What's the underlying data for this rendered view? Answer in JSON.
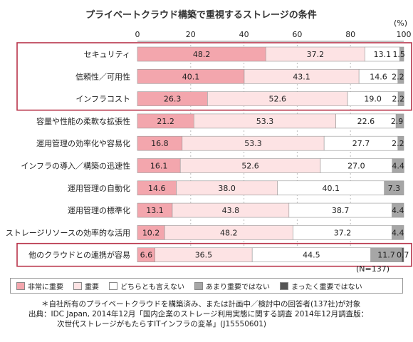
{
  "title": "プライベートクラウド構築で重視するストレージの条件",
  "unit_label": "(%)",
  "n_label": "(N=137)",
  "legend": [
    {
      "label": "非常に重要",
      "color": "#f3a6ad"
    },
    {
      "label": "重要",
      "color": "#fde3e4"
    },
    {
      "label": "どちらとも言えない",
      "color": "#ffffff"
    },
    {
      "label": "あまり重要ではない",
      "color": "#a6a6a6"
    },
    {
      "label": "まったく重要ではない",
      "color": "#555555"
    }
  ],
  "notes": [
    "＊自社所有のプライベートクラウドを構築済み、または計画中／検討中の回答者(137社)が対象",
    "出典：IDC Japan, 2014年12月「国内企業のストレージ利用実態に関する調査 2014年12月調査版：",
    "次世代ストレージがもたらすITインフラの変革」(J15550601)"
  ],
  "chart_data": {
    "type": "bar",
    "orientation": "horizontal-stacked-100",
    "title": "プライベートクラウド構築で重視するストレージの条件",
    "xlim": [
      0,
      100
    ],
    "xticks": [
      0,
      20,
      40,
      60,
      80,
      100
    ],
    "categories": [
      "セキュリティ",
      "信頼性／可用性",
      "インフラコスト",
      "容量や性能の柔軟な拡張性",
      "運用管理の効率化や容易化",
      "インフラの導入／構築の迅速性",
      "運用管理の自動化",
      "運用管理の標準化",
      "ストレージリソースの効率的な活用",
      "他のクラウドとの連携が容易"
    ],
    "series": [
      {
        "name": "非常に重要",
        "values": [
          48.2,
          40.1,
          26.3,
          21.2,
          16.8,
          16.1,
          14.6,
          13.1,
          10.2,
          6.6
        ]
      },
      {
        "name": "重要",
        "values": [
          37.2,
          43.1,
          52.6,
          53.3,
          53.3,
          52.6,
          38.0,
          43.8,
          48.2,
          36.5
        ]
      },
      {
        "name": "どちらとも言えない",
        "values": [
          13.1,
          14.6,
          19.0,
          22.6,
          27.7,
          27.0,
          40.1,
          38.7,
          37.2,
          44.5
        ]
      },
      {
        "name": "あまり重要ではない",
        "values": [
          1.5,
          2.2,
          2.2,
          2.9,
          2.2,
          4.4,
          7.3,
          4.4,
          4.4,
          11.7
        ]
      },
      {
        "name": "まったく重要ではない",
        "values": [
          0,
          0,
          0,
          0,
          0,
          0,
          0,
          0,
          0,
          0.7
        ]
      }
    ],
    "highlighted_groups": [
      [
        0,
        1,
        2
      ],
      [
        9
      ]
    ]
  }
}
